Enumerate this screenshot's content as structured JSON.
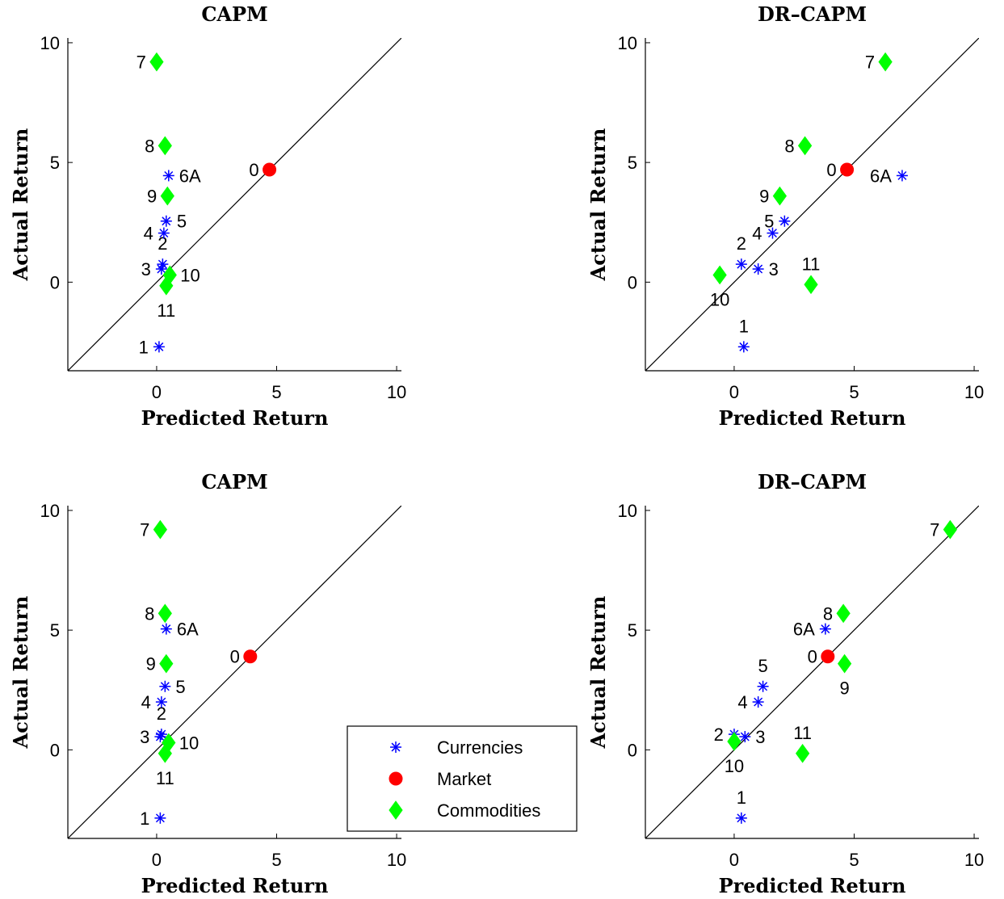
{
  "colors": {
    "currencies": "#0000ff",
    "market": "#ff0000",
    "commodities": "#00ff00",
    "axis": "#000000"
  },
  "chart_data": [
    {
      "type": "scatter",
      "title": "CAPM",
      "xlabel": "Predicted Return",
      "ylabel": "Actual Return",
      "xlim": [
        -3.7,
        10.2
      ],
      "ylim": [
        -3.7,
        10.2
      ],
      "xticks": [
        0,
        5,
        10
      ],
      "yticks": [
        0,
        5,
        10
      ],
      "diagonal": true,
      "points": [
        {
          "label": "1",
          "series": "currencies",
          "x": 0.1,
          "y": -2.7,
          "lpos": "left"
        },
        {
          "label": "2",
          "series": "currencies",
          "x": 0.25,
          "y": 0.75,
          "lpos": "above"
        },
        {
          "label": "3",
          "series": "currencies",
          "x": 0.2,
          "y": 0.55,
          "lpos": "left"
        },
        {
          "label": "4",
          "series": "currencies",
          "x": 0.3,
          "y": 2.05,
          "lpos": "left"
        },
        {
          "label": "5",
          "series": "currencies",
          "x": 0.4,
          "y": 2.55,
          "lpos": "right"
        },
        {
          "label": "6A",
          "series": "currencies",
          "x": 0.5,
          "y": 4.45,
          "lpos": "right"
        },
        {
          "label": "0",
          "series": "market",
          "x": 4.7,
          "y": 4.7,
          "lpos": "left"
        },
        {
          "label": "7",
          "series": "commodities",
          "x": 0.0,
          "y": 9.2,
          "lpos": "left"
        },
        {
          "label": "8",
          "series": "commodities",
          "x": 0.35,
          "y": 5.7,
          "lpos": "left"
        },
        {
          "label": "9",
          "series": "commodities",
          "x": 0.45,
          "y": 3.6,
          "lpos": "left"
        },
        {
          "label": "10",
          "series": "commodities",
          "x": 0.55,
          "y": 0.3,
          "lpos": "right"
        },
        {
          "label": "11",
          "series": "commodities",
          "x": 0.4,
          "y": -0.15,
          "lpos": "below"
        }
      ]
    },
    {
      "type": "scatter",
      "title": "DR–CAPM",
      "xlabel": "Predicted Return",
      "ylabel": "Actual Return",
      "xlim": [
        -3.7,
        10.2
      ],
      "ylim": [
        -3.7,
        10.2
      ],
      "xticks": [
        0,
        5,
        10
      ],
      "yticks": [
        0,
        5,
        10
      ],
      "diagonal": true,
      "points": [
        {
          "label": "1",
          "series": "currencies",
          "x": 0.4,
          "y": -2.7,
          "lpos": "above"
        },
        {
          "label": "2",
          "series": "currencies",
          "x": 0.3,
          "y": 0.75,
          "lpos": "above"
        },
        {
          "label": "3",
          "series": "currencies",
          "x": 1.0,
          "y": 0.55,
          "lpos": "right"
        },
        {
          "label": "4",
          "series": "currencies",
          "x": 1.6,
          "y": 2.05,
          "lpos": "left"
        },
        {
          "label": "5",
          "series": "currencies",
          "x": 2.1,
          "y": 2.55,
          "lpos": "left"
        },
        {
          "label": "6A",
          "series": "currencies",
          "x": 7.0,
          "y": 4.45,
          "lpos": "left"
        },
        {
          "label": "0",
          "series": "market",
          "x": 4.7,
          "y": 4.7,
          "lpos": "left"
        },
        {
          "label": "7",
          "series": "commodities",
          "x": 6.3,
          "y": 9.2,
          "lpos": "left"
        },
        {
          "label": "8",
          "series": "commodities",
          "x": 2.95,
          "y": 5.7,
          "lpos": "left"
        },
        {
          "label": "9",
          "series": "commodities",
          "x": 1.9,
          "y": 3.6,
          "lpos": "left"
        },
        {
          "label": "10",
          "series": "commodities",
          "x": -0.6,
          "y": 0.3,
          "lpos": "below"
        },
        {
          "label": "11",
          "series": "commodities",
          "x": 3.2,
          "y": -0.1,
          "lpos": "above"
        }
      ]
    },
    {
      "type": "scatter",
      "title": "CAPM",
      "xlabel": "Predicted Return",
      "ylabel": "Actual Return",
      "xlim": [
        -3.7,
        10.2
      ],
      "ylim": [
        -3.7,
        10.2
      ],
      "xticks": [
        0,
        5,
        10
      ],
      "yticks": [
        0,
        5,
        10
      ],
      "diagonal": true,
      "legend": {
        "placement": "bottom-right",
        "entries": [
          {
            "series": "currencies",
            "label": "Currencies"
          },
          {
            "series": "market",
            "label": "Market"
          },
          {
            "series": "commodities",
            "label": "Commodities"
          }
        ]
      },
      "points": [
        {
          "label": "1",
          "series": "currencies",
          "x": 0.15,
          "y": -2.85,
          "lpos": "left"
        },
        {
          "label": "2",
          "series": "currencies",
          "x": 0.2,
          "y": 0.65,
          "lpos": "above"
        },
        {
          "label": "3",
          "series": "currencies",
          "x": 0.15,
          "y": 0.55,
          "lpos": "left"
        },
        {
          "label": "4",
          "series": "currencies",
          "x": 0.2,
          "y": 2.0,
          "lpos": "left"
        },
        {
          "label": "5",
          "series": "currencies",
          "x": 0.35,
          "y": 2.65,
          "lpos": "right"
        },
        {
          "label": "6A",
          "series": "currencies",
          "x": 0.4,
          "y": 5.05,
          "lpos": "right"
        },
        {
          "label": "0",
          "series": "market",
          "x": 3.9,
          "y": 3.9,
          "lpos": "left"
        },
        {
          "label": "7",
          "series": "commodities",
          "x": 0.15,
          "y": 9.2,
          "lpos": "left"
        },
        {
          "label": "8",
          "series": "commodities",
          "x": 0.35,
          "y": 5.7,
          "lpos": "left"
        },
        {
          "label": "9",
          "series": "commodities",
          "x": 0.4,
          "y": 3.6,
          "lpos": "left"
        },
        {
          "label": "10",
          "series": "commodities",
          "x": 0.5,
          "y": 0.3,
          "lpos": "right"
        },
        {
          "label": "11",
          "series": "commodities",
          "x": 0.35,
          "y": -0.15,
          "lpos": "below"
        }
      ]
    },
    {
      "type": "scatter",
      "title": "DR–CAPM",
      "xlabel": "Predicted Return",
      "ylabel": "Actual Return",
      "xlim": [
        -3.7,
        10.2
      ],
      "ylim": [
        -3.7,
        10.2
      ],
      "xticks": [
        0,
        5,
        10
      ],
      "yticks": [
        0,
        5,
        10
      ],
      "diagonal": true,
      "points": [
        {
          "label": "1",
          "series": "currencies",
          "x": 0.3,
          "y": -2.85,
          "lpos": "above"
        },
        {
          "label": "2",
          "series": "currencies",
          "x": 0.0,
          "y": 0.65,
          "lpos": "left"
        },
        {
          "label": "3",
          "series": "currencies",
          "x": 0.45,
          "y": 0.55,
          "lpos": "right"
        },
        {
          "label": "4",
          "series": "currencies",
          "x": 1.0,
          "y": 2.0,
          "lpos": "left"
        },
        {
          "label": "5",
          "series": "currencies",
          "x": 1.2,
          "y": 2.65,
          "lpos": "above"
        },
        {
          "label": "6A",
          "series": "currencies",
          "x": 3.8,
          "y": 5.05,
          "lpos": "left"
        },
        {
          "label": "0",
          "series": "market",
          "x": 3.9,
          "y": 3.9,
          "lpos": "left"
        },
        {
          "label": "7",
          "series": "commodities",
          "x": 9.0,
          "y": 9.2,
          "lpos": "left"
        },
        {
          "label": "8",
          "series": "commodities",
          "x": 4.55,
          "y": 5.7,
          "lpos": "left"
        },
        {
          "label": "9",
          "series": "commodities",
          "x": 4.6,
          "y": 3.6,
          "lpos": "below"
        },
        {
          "label": "10",
          "series": "commodities",
          "x": 0.0,
          "y": 0.35,
          "lpos": "below"
        },
        {
          "label": "11",
          "series": "commodities",
          "x": 2.85,
          "y": -0.15,
          "lpos": "above"
        }
      ]
    }
  ]
}
